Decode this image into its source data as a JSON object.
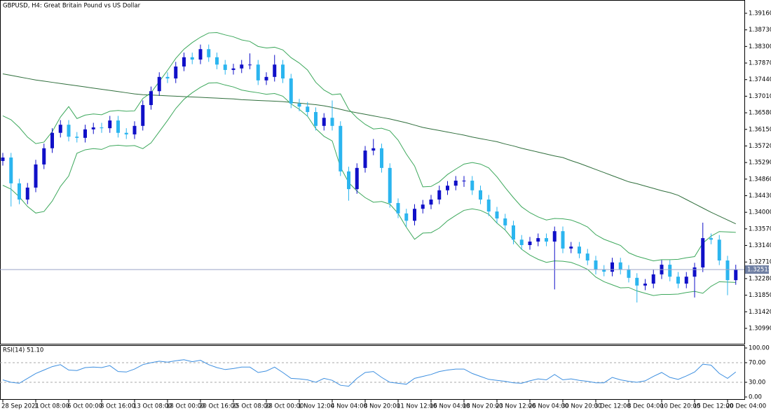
{
  "chart_data": [
    {
      "type": "candlestick",
      "title": "GBPUSD, H4:  Great Britain Pound vs US Dollar",
      "categories": [
        "28 Sep 2021",
        null,
        null,
        null,
        "1 Oct 08:00",
        null,
        null,
        null,
        "6 Oct 00:00",
        null,
        null,
        null,
        "8 Oct 16:00",
        null,
        null,
        null,
        "13 Oct 08:00",
        null,
        null,
        null,
        "18 Oct 00:00",
        null,
        null,
        null,
        "20 Oct 16:00",
        null,
        null,
        null,
        "25 Oct 08:00",
        null,
        null,
        null,
        "28 Oct 00:00",
        null,
        null,
        null,
        "1 Nov 12:00",
        null,
        null,
        null,
        "4 Nov 04:00",
        null,
        null,
        null,
        "8 Nov 20:00",
        null,
        null,
        null,
        "11 Nov 12:00",
        null,
        null,
        null,
        "16 Nov 04:00",
        null,
        null,
        null,
        "18 Nov 20:00",
        null,
        null,
        null,
        "23 Nov 12:00",
        null,
        null,
        null,
        "26 Nov 04:00",
        null,
        null,
        null,
        "30 Nov 20:00",
        null,
        null,
        null,
        "3 Dec 12:00",
        null,
        null,
        null,
        "8 Dec 04:00",
        null,
        null,
        null,
        "10 Dec 20:00",
        null,
        null,
        null,
        "15 Dec 12:00",
        null,
        null,
        null,
        "20 Dec 04:00",
        null
      ],
      "open": [
        1.3533,
        1.3542,
        1.3475,
        1.3433,
        1.3464,
        1.3524,
        1.3566,
        1.3606,
        1.3627,
        1.3596,
        1.3593,
        1.3615,
        1.362,
        1.3618,
        1.3638,
        1.3606,
        1.3602,
        1.3624,
        1.3678,
        1.3714,
        1.3751,
        1.3747,
        1.3778,
        1.3802,
        1.3796,
        1.3823,
        1.3802,
        1.3783,
        1.3769,
        1.3773,
        1.3783,
        1.3783,
        1.3742,
        1.3751,
        1.3783,
        1.3747,
        1.3682,
        1.3674,
        1.366,
        1.3624,
        1.3645,
        1.3624,
        1.3506,
        1.346,
        1.3515,
        1.356,
        1.3566,
        1.3515,
        1.3424,
        1.3397,
        1.3378,
        1.3409,
        1.342,
        1.3433,
        1.3457,
        1.3469,
        1.3482,
        1.3482,
        1.3457,
        1.3433,
        1.3402,
        1.3384,
        1.3366,
        1.3329,
        1.3315,
        1.3324,
        1.3333,
        1.3324,
        1.3351,
        1.3306,
        1.3311,
        1.3293,
        1.3275,
        1.3251,
        1.3246,
        1.327,
        1.3251,
        1.323,
        1.321,
        1.3215,
        1.3239,
        1.3264,
        1.3233,
        1.3215,
        1.3233,
        1.3257,
        1.3333,
        1.3329,
        1.3275,
        1.3224
      ],
      "high": [
        1.3554,
        1.3554,
        1.3487,
        1.3476,
        1.3536,
        1.3578,
        1.3618,
        1.3639,
        1.3639,
        1.3608,
        1.3627,
        1.3632,
        1.3632,
        1.365,
        1.365,
        1.3618,
        1.3636,
        1.369,
        1.3726,
        1.3763,
        1.3763,
        1.379,
        1.3814,
        1.3814,
        1.3835,
        1.3835,
        1.3814,
        1.3795,
        1.3785,
        1.3795,
        1.3812,
        1.3795,
        1.3763,
        1.3808,
        1.3795,
        1.3759,
        1.3694,
        1.3686,
        1.3672,
        1.3657,
        1.369,
        1.3636,
        1.3518,
        1.3527,
        1.3572,
        1.359,
        1.3578,
        1.3527,
        1.3436,
        1.3409,
        1.3421,
        1.3432,
        1.3445,
        1.3469,
        1.3481,
        1.3494,
        1.3494,
        1.3494,
        1.3469,
        1.3445,
        1.3414,
        1.3396,
        1.3378,
        1.3341,
        1.3336,
        1.3345,
        1.3345,
        1.3363,
        1.3363,
        1.3323,
        1.3323,
        1.3305,
        1.3287,
        1.3263,
        1.3282,
        1.3282,
        1.3263,
        1.3242,
        1.3227,
        1.3251,
        1.3276,
        1.3276,
        1.3245,
        1.3245,
        1.3269,
        1.3373,
        1.3345,
        1.3341,
        1.3287,
        1.3264
      ],
      "low": [
        1.3521,
        1.3415,
        1.3421,
        1.3421,
        1.3452,
        1.3512,
        1.3554,
        1.3594,
        1.3584,
        1.3581,
        1.3581,
        1.3603,
        1.3606,
        1.3606,
        1.3594,
        1.359,
        1.359,
        1.3612,
        1.3666,
        1.3702,
        1.3735,
        1.3735,
        1.3766,
        1.3784,
        1.3784,
        1.379,
        1.3771,
        1.3757,
        1.3757,
        1.3761,
        1.3771,
        1.373,
        1.373,
        1.3739,
        1.3735,
        1.367,
        1.3662,
        1.3648,
        1.3612,
        1.3612,
        1.3612,
        1.3494,
        1.343,
        1.3448,
        1.3503,
        1.3548,
        1.3503,
        1.3412,
        1.3385,
        1.3362,
        1.3366,
        1.3397,
        1.3408,
        1.3421,
        1.3445,
        1.3457,
        1.3466,
        1.3445,
        1.3421,
        1.339,
        1.3372,
        1.3354,
        1.3317,
        1.3303,
        1.3303,
        1.3312,
        1.3312,
        1.32,
        1.3294,
        1.3294,
        1.3281,
        1.3263,
        1.3239,
        1.3234,
        1.3234,
        1.3239,
        1.3218,
        1.3166,
        1.3198,
        1.3203,
        1.3227,
        1.3221,
        1.3203,
        1.3203,
        1.3179,
        1.3245,
        1.3317,
        1.3263,
        1.3185,
        1.3212
      ],
      "close": [
        1.3542,
        1.3475,
        1.3433,
        1.3464,
        1.3524,
        1.3566,
        1.3606,
        1.3627,
        1.3596,
        1.3593,
        1.3615,
        1.362,
        1.3618,
        1.3638,
        1.3606,
        1.3602,
        1.3624,
        1.3678,
        1.3714,
        1.3751,
        1.3747,
        1.3778,
        1.3802,
        1.3796,
        1.3823,
        1.3802,
        1.3783,
        1.3769,
        1.3773,
        1.3783,
        1.3783,
        1.3742,
        1.3751,
        1.3783,
        1.3747,
        1.3682,
        1.3674,
        1.366,
        1.3624,
        1.3645,
        1.3624,
        1.3506,
        1.346,
        1.3515,
        1.356,
        1.3566,
        1.3515,
        1.3424,
        1.3397,
        1.3378,
        1.3409,
        1.342,
        1.3433,
        1.3457,
        1.3469,
        1.3482,
        1.3482,
        1.3457,
        1.3433,
        1.3402,
        1.3384,
        1.3366,
        1.3329,
        1.3315,
        1.3324,
        1.3333,
        1.3324,
        1.3351,
        1.3306,
        1.3311,
        1.3293,
        1.3275,
        1.3251,
        1.3246,
        1.327,
        1.3251,
        1.323,
        1.321,
        1.3215,
        1.3239,
        1.3264,
        1.3233,
        1.3215,
        1.3233,
        1.3257,
        1.3333,
        1.3329,
        1.3275,
        1.3224,
        1.3252
      ],
      "up_color": "#1010c8",
      "down_color": "#2bb5ef",
      "lines": [
        {
          "color": "#2f6e3c",
          "values": [
            1.3759,
            1.3755,
            1.3751,
            1.3747,
            1.3743,
            1.374,
            1.3737,
            1.3734,
            1.3731,
            1.3728,
            1.3725,
            1.3722,
            1.3719,
            1.3716,
            1.3713,
            1.371,
            1.3707,
            1.3705,
            1.3704,
            1.3703,
            1.3702,
            1.3701,
            1.37,
            1.3699,
            1.3698,
            1.3697,
            1.3696,
            1.3695,
            1.3694,
            1.3692,
            1.3691,
            1.369,
            1.3689,
            1.3688,
            1.3687,
            1.3685,
            1.3683,
            1.3681,
            1.3679,
            1.3676,
            1.3672,
            1.3667,
            1.3662,
            1.3658,
            1.3654,
            1.365,
            1.3646,
            1.3642,
            1.3637,
            1.3632,
            1.3626,
            1.362,
            1.3616,
            1.3612,
            1.3608,
            1.3604,
            1.36,
            1.3595,
            1.3591,
            1.3587,
            1.3583,
            1.3577,
            1.3572,
            1.3566,
            1.3561,
            1.3556,
            1.3551,
            1.3546,
            1.3542,
            1.3534,
            1.3527,
            1.3519,
            1.3511,
            1.3503,
            1.3495,
            1.3487,
            1.3479,
            1.3474,
            1.3468,
            1.3462,
            1.3456,
            1.3451,
            1.3444,
            1.3433,
            1.3422,
            1.3411,
            1.34,
            1.339,
            1.338,
            1.337
          ]
        },
        {
          "color": "#3da85c",
          "values": [
            1.365,
            1.364,
            1.362,
            1.3595,
            1.3578,
            1.3582,
            1.3609,
            1.3647,
            1.3674,
            1.3643,
            1.3652,
            1.3655,
            1.3653,
            1.3662,
            1.3664,
            1.3662,
            1.3663,
            1.3695,
            1.371,
            1.3739,
            1.3768,
            1.3799,
            1.3823,
            1.384,
            1.3854,
            1.3865,
            1.3866,
            1.386,
            1.3855,
            1.3847,
            1.3843,
            1.383,
            1.3826,
            1.3828,
            1.3821,
            1.3801,
            1.3787,
            1.3769,
            1.3737,
            1.3717,
            1.3705,
            1.3707,
            1.3667,
            1.3645,
            1.3628,
            1.3616,
            1.3618,
            1.3611,
            1.3587,
            1.3551,
            1.352,
            1.3466,
            1.3467,
            1.3479,
            1.3498,
            1.3512,
            1.3525,
            1.3529,
            1.3525,
            1.3515,
            1.3492,
            1.3464,
            1.3438,
            1.3414,
            1.3399,
            1.3388,
            1.338,
            1.3384,
            1.3383,
            1.338,
            1.3372,
            1.3362,
            1.3342,
            1.333,
            1.3322,
            1.3314,
            1.3295,
            1.3286,
            1.328,
            1.3274,
            1.3277,
            1.3277,
            1.3278,
            1.3282,
            1.3285,
            1.332,
            1.3338,
            1.335,
            1.3349,
            1.3348
          ]
        },
        {
          "color": "#3da85c",
          "values": [
            1.347,
            1.346,
            1.344,
            1.3415,
            1.3398,
            1.3402,
            1.3429,
            1.3467,
            1.3494,
            1.3553,
            1.3562,
            1.3565,
            1.3563,
            1.3572,
            1.3574,
            1.3572,
            1.3573,
            1.3565,
            1.358,
            1.3609,
            1.3638,
            1.3669,
            1.3693,
            1.371,
            1.3724,
            1.3735,
            1.3736,
            1.373,
            1.3725,
            1.3717,
            1.3713,
            1.371,
            1.3706,
            1.3708,
            1.3701,
            1.3681,
            1.3667,
            1.3649,
            1.3617,
            1.3597,
            1.3585,
            1.3517,
            1.3477,
            1.3455,
            1.3438,
            1.3426,
            1.3428,
            1.3421,
            1.3397,
            1.3361,
            1.333,
            1.3346,
            1.3347,
            1.3359,
            1.3378,
            1.3392,
            1.3405,
            1.3409,
            1.3405,
            1.3395,
            1.3372,
            1.3354,
            1.3328,
            1.3304,
            1.3289,
            1.3278,
            1.327,
            1.3274,
            1.3273,
            1.327,
            1.3262,
            1.3252,
            1.3232,
            1.322,
            1.3212,
            1.3204,
            1.3205,
            1.3196,
            1.319,
            1.3184,
            1.3187,
            1.3187,
            1.3188,
            1.3192,
            1.3195,
            1.319,
            1.3208,
            1.322,
            1.3219,
            1.3218
          ]
        }
      ],
      "last_price": {
        "value": 1.32515,
        "label": "1.32515"
      },
      "ylim": [
        1.3059,
        1.3945
      ],
      "yticks": [
        {
          "value": 1.3916,
          "label": "1.39160"
        },
        {
          "value": 1.3873,
          "label": "1.38730"
        },
        {
          "value": 1.383,
          "label": "1.38300"
        },
        {
          "value": 1.3787,
          "label": "1.37870"
        },
        {
          "value": 1.3744,
          "label": "1.37440"
        },
        {
          "value": 1.3701,
          "label": "1.37010"
        },
        {
          "value": 1.3658,
          "label": "1.36580"
        },
        {
          "value": 1.3615,
          "label": "1.36150"
        },
        {
          "value": 1.3572,
          "label": "1.35720"
        },
        {
          "value": 1.3529,
          "label": "1.35290"
        },
        {
          "value": 1.3486,
          "label": "1.34860"
        },
        {
          "value": 1.3443,
          "label": "1.34430"
        },
        {
          "value": 1.34,
          "label": "1.34000"
        },
        {
          "value": 1.3357,
          "label": "1.33570"
        },
        {
          "value": 1.3314,
          "label": "1.33140"
        },
        {
          "value": 1.3271,
          "label": "1.32710"
        },
        {
          "value": 1.3228,
          "label": "1.32280"
        },
        {
          "value": 1.3185,
          "label": "1.31850"
        },
        {
          "value": 1.3142,
          "label": "1.31420"
        },
        {
          "value": 1.3099,
          "label": "1.30990"
        }
      ]
    },
    {
      "type": "line",
      "title": "RSI(14) 51.10",
      "color": "#3d8fe0",
      "values": [
        35,
        30,
        28,
        38,
        48,
        55,
        62,
        66,
        55,
        54,
        60,
        61,
        60,
        64,
        52,
        51,
        57,
        66,
        70,
        73,
        71,
        74,
        76,
        72,
        75,
        66,
        60,
        56,
        58,
        61,
        61,
        50,
        53,
        61,
        50,
        38,
        37,
        35,
        30,
        38,
        34,
        24,
        22,
        38,
        50,
        52,
        40,
        30,
        28,
        26,
        38,
        42,
        46,
        52,
        55,
        57,
        57,
        48,
        42,
        36,
        34,
        32,
        29,
        28,
        33,
        37,
        35,
        46,
        35,
        37,
        34,
        32,
        29,
        29,
        40,
        35,
        32,
        30,
        33,
        42,
        50,
        40,
        36,
        43,
        51,
        67,
        65,
        48,
        38,
        51.1
      ],
      "ylim": [
        0,
        100
      ],
      "yticks": [
        {
          "value": 100,
          "label": "100.00"
        },
        {
          "value": 70,
          "label": "70.00"
        },
        {
          "value": 30,
          "label": "30.00"
        },
        {
          "value": 0,
          "label": "0.00"
        }
      ]
    }
  ]
}
